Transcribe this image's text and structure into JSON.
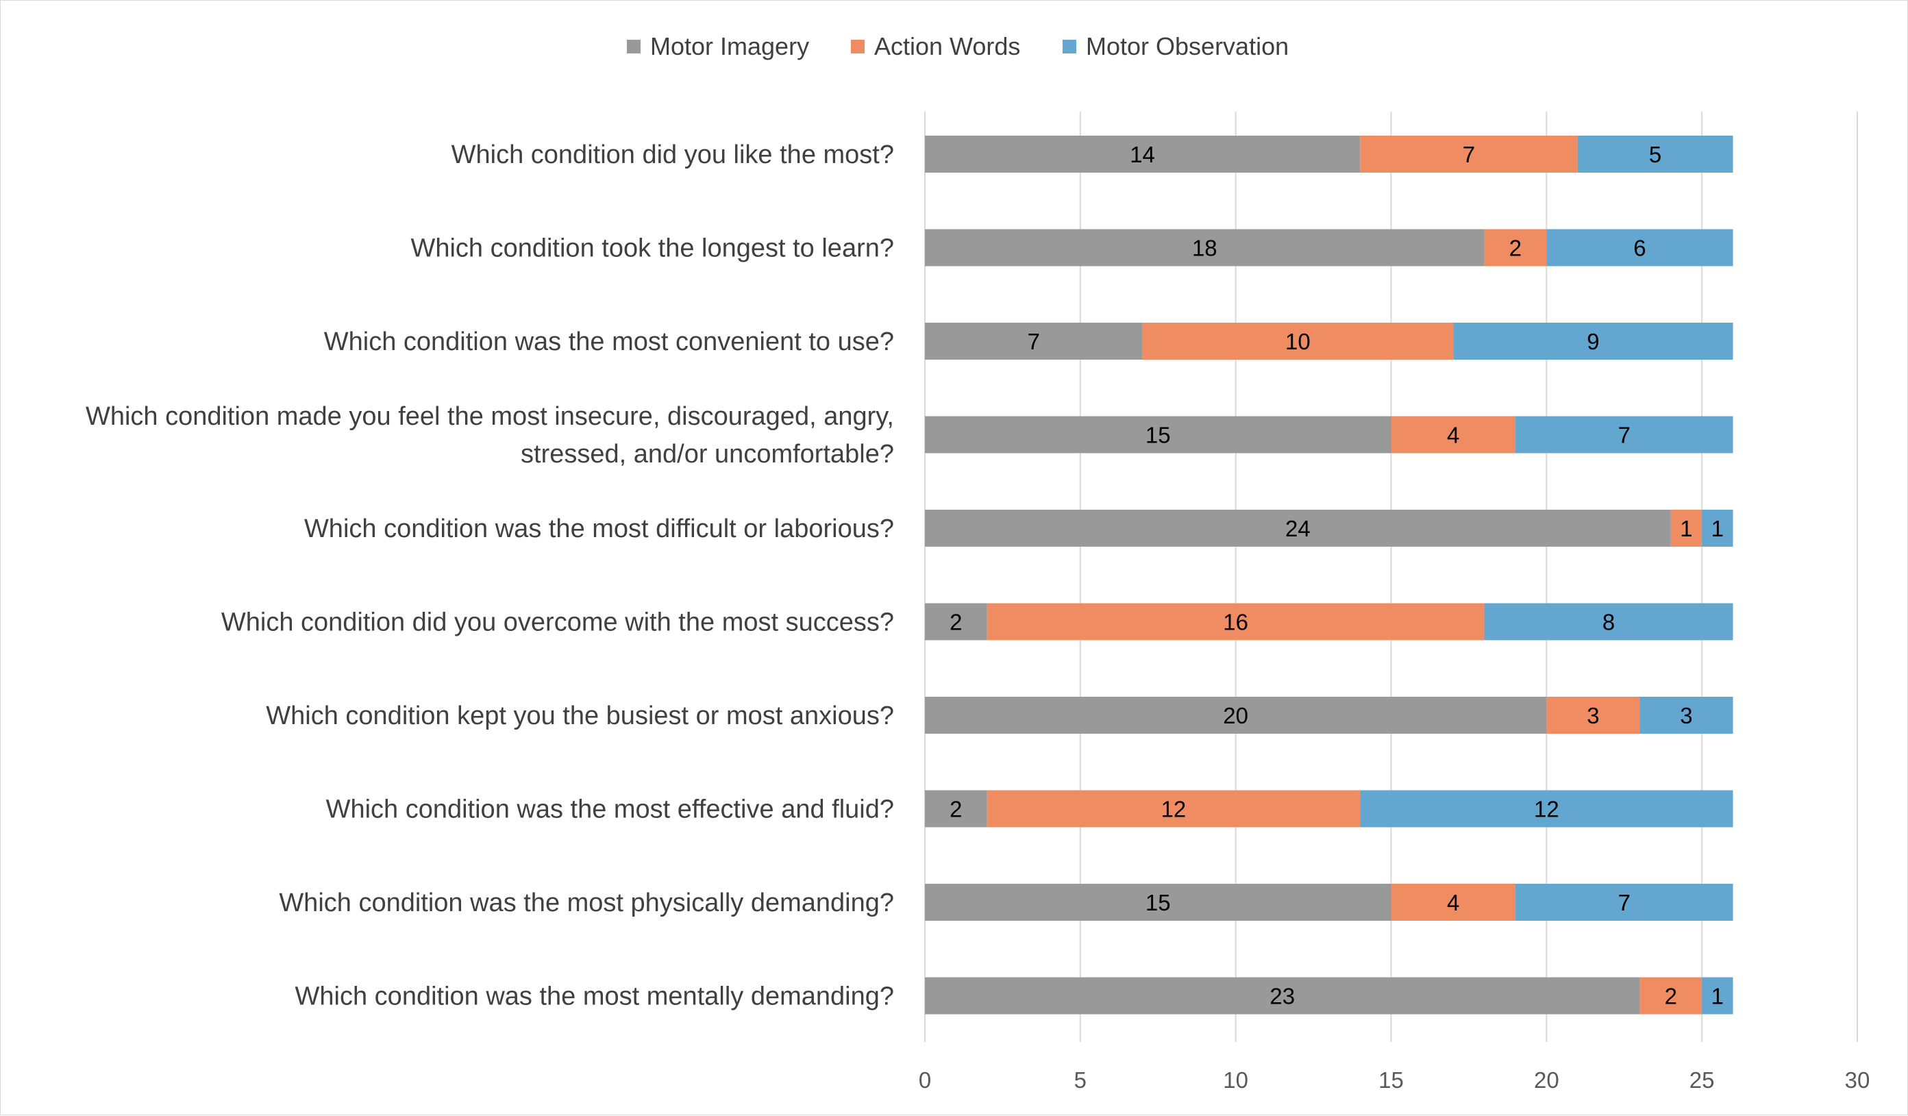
{
  "chart_data": {
    "type": "bar",
    "orientation": "horizontal",
    "stacked": true,
    "categories": [
      [
        "Which condition did you like the most?"
      ],
      [
        "Which condition took the longest to learn?"
      ],
      [
        "Which condition was the most convenient to use?"
      ],
      [
        "Which condition made you feel the most insecure, discouraged, angry,",
        "stressed, and/or uncomfortable?"
      ],
      [
        "Which condition was the most difficult or laborious?"
      ],
      [
        "Which condition did you overcome with the most success?"
      ],
      [
        "Which condition kept you the busiest or most anxious?"
      ],
      [
        "Which condition was the most effective and fluid?"
      ],
      [
        "Which condition was the most physically demanding?"
      ],
      [
        "Which condition was the most mentally demanding?"
      ]
    ],
    "series": [
      {
        "name": "Motor Imagery",
        "color": "#999999",
        "values": [
          14,
          18,
          7,
          15,
          24,
          2,
          20,
          2,
          15,
          23
        ]
      },
      {
        "name": "Action Words",
        "color": "#f08c62",
        "values": [
          7,
          2,
          10,
          4,
          1,
          16,
          3,
          12,
          4,
          2
        ]
      },
      {
        "name": "Motor Observation",
        "color": "#63a6d0",
        "values": [
          5,
          6,
          9,
          7,
          1,
          8,
          3,
          12,
          7,
          1
        ]
      }
    ],
    "xlim": [
      0,
      30
    ],
    "xticks": [
      0,
      5,
      10,
      15,
      20,
      25,
      30
    ],
    "grid": true,
    "legend_position": "top"
  }
}
